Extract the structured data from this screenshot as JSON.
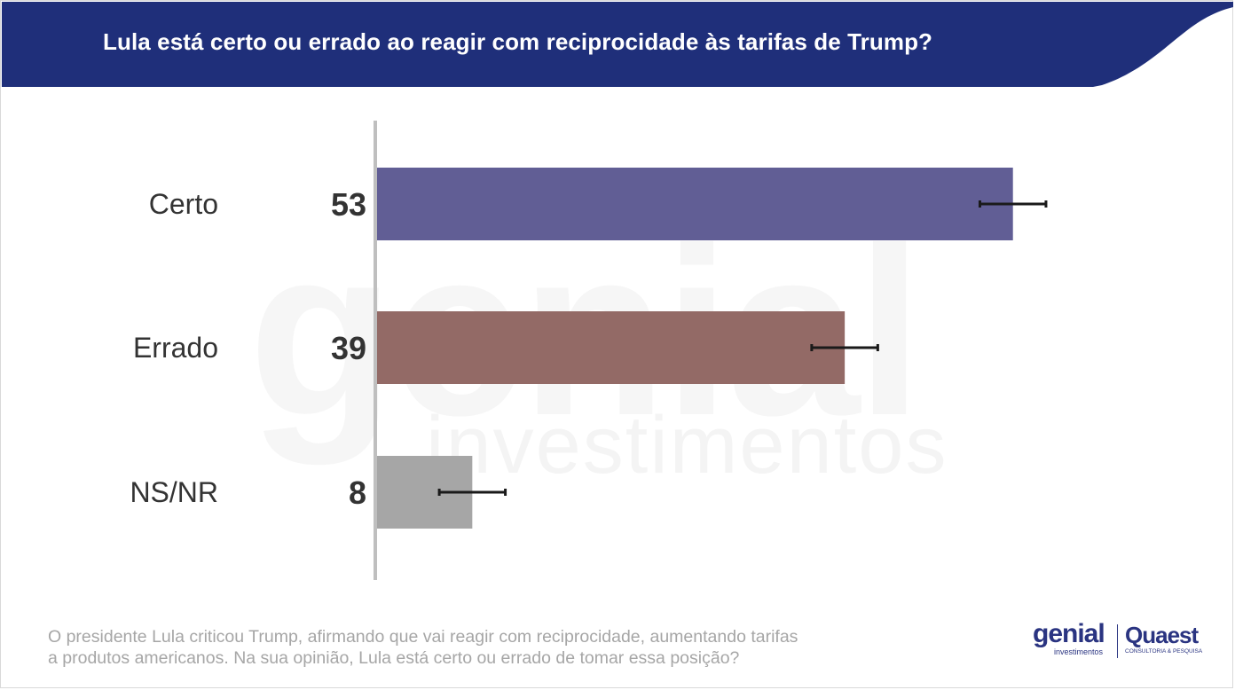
{
  "header": {
    "title": "Lula está certo ou errado ao reagir com reciprocidade às tarifas de Trump?",
    "background_color": "#1f2f7a"
  },
  "watermark": {
    "big": "genial",
    "small": "investimentos"
  },
  "chart_data": {
    "type": "bar",
    "orientation": "horizontal",
    "title": "Lula está certo ou errado ao reagir com reciprocidade às tarifas de Trump?",
    "categories": [
      "Certo",
      "Errado",
      "NS/NR"
    ],
    "values": [
      53,
      39,
      8
    ],
    "error_margin": 2.75,
    "colors": [
      "#615e95",
      "#936a66",
      "#a6a6a6"
    ],
    "xlim": [
      0,
      72
    ],
    "grid": false,
    "legend": "none"
  },
  "footer": {
    "question_line1": "O presidente Lula criticou Trump, afirmando que vai reagir com reciprocidade, aumentando tarifas",
    "question_line2": "a produtos americanos.  Na sua opinião, Lula está certo ou errado de tomar essa posição?",
    "logo_genial": "genial",
    "logo_genial_sub": "investimentos",
    "logo_quaest": "Quaest",
    "logo_quaest_sub": "CONSULTORIA & PESQUISA",
    "logo_color": "#2a3481"
  }
}
